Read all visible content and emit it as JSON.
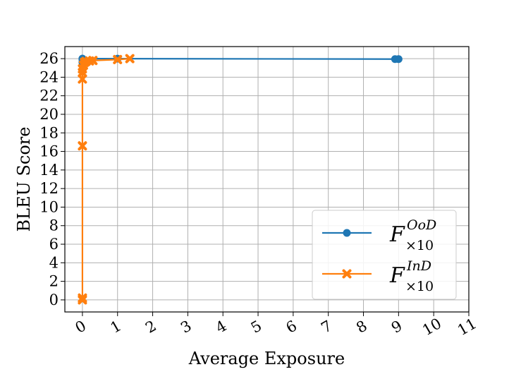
{
  "chart_data": {
    "type": "line",
    "xlabel": "Average Exposure",
    "ylabel": "BLEU Score",
    "xlim": [
      -0.5,
      11
    ],
    "ylim": [
      -1.3,
      27.3
    ],
    "xticks": [
      0,
      1,
      2,
      3,
      4,
      5,
      6,
      7,
      8,
      9,
      10,
      11
    ],
    "yticks": [
      0,
      2,
      4,
      6,
      8,
      10,
      12,
      14,
      16,
      18,
      20,
      22,
      24,
      26
    ],
    "grid": true,
    "legend_position": "bottom-right",
    "series": [
      {
        "legend_main": "F",
        "legend_sup": "OoD",
        "legend_sub": "×10",
        "color": "#1f77b4",
        "marker": "circle",
        "points": [
          {
            "x": 0.0,
            "y": 25.6
          },
          {
            "x": 0.0,
            "y": 25.9
          },
          {
            "x": 0.0,
            "y": 26.0
          },
          {
            "x": 0.0,
            "y": 26.0
          },
          {
            "x": 1.0,
            "y": 26.0
          },
          {
            "x": 8.9,
            "y": 25.95
          },
          {
            "x": 9.0,
            "y": 25.95
          }
        ]
      },
      {
        "legend_main": "F",
        "legend_sup": "InD",
        "legend_sub": "×10",
        "color": "#ff7f0e",
        "marker": "x",
        "points": [
          {
            "x": 0.0,
            "y": 0.0
          },
          {
            "x": 0.0,
            "y": 0.2
          },
          {
            "x": 0.0,
            "y": 16.6
          },
          {
            "x": 0.0,
            "y": 23.8
          },
          {
            "x": 0.0,
            "y": 24.5
          },
          {
            "x": 0.0,
            "y": 24.9
          },
          {
            "x": 0.03,
            "y": 25.3
          },
          {
            "x": 0.06,
            "y": 25.6
          },
          {
            "x": 0.1,
            "y": 25.7
          },
          {
            "x": 0.2,
            "y": 25.75
          },
          {
            "x": 0.3,
            "y": 25.8
          },
          {
            "x": 1.0,
            "y": 25.9
          },
          {
            "x": 1.35,
            "y": 26.0
          }
        ]
      }
    ]
  }
}
